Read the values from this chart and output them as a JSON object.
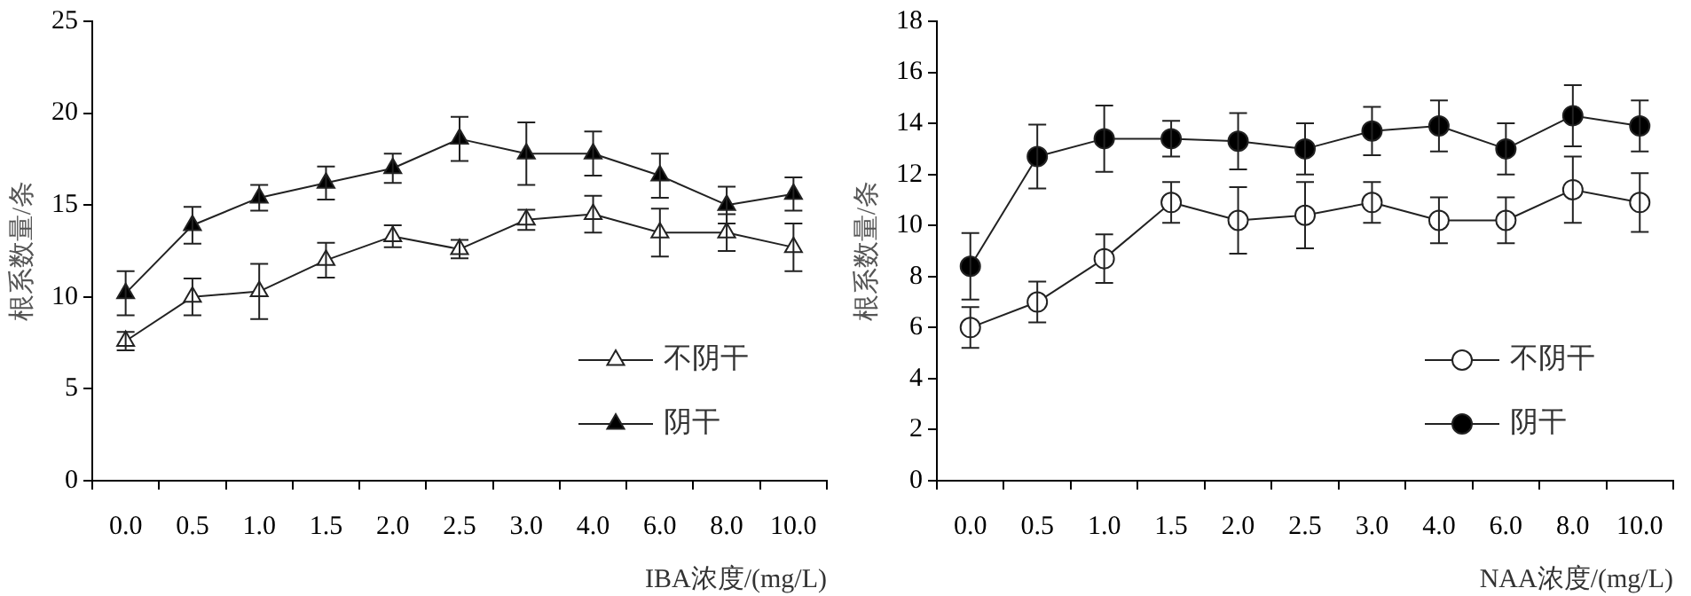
{
  "chart_data": [
    {
      "type": "line",
      "xlabel": "IBA浓度/(mg/L)",
      "ylabel": "根系数量/条",
      "categories": [
        "0.0",
        "0.5",
        "1.0",
        "1.5",
        "2.0",
        "2.5",
        "3.0",
        "4.0",
        "6.0",
        "8.0",
        "10.0"
      ],
      "ylim": [
        0,
        25
      ],
      "yticks": [
        0,
        5,
        10,
        15,
        20,
        25
      ],
      "grid": false,
      "legend": "bottom right",
      "series": [
        {
          "name": "不阴干",
          "color": "#ffffff",
          "marker": "triangle",
          "values": [
            7.6,
            10.0,
            10.3,
            12.0,
            13.3,
            12.6,
            14.2,
            14.5,
            13.5,
            13.5,
            12.7
          ],
          "errors": [
            0.5,
            1.0,
            1.5,
            0.95,
            0.6,
            0.5,
            0.55,
            1.0,
            1.3,
            1.0,
            1.3
          ]
        },
        {
          "name": "阴干",
          "color": "#000000",
          "marker": "triangle",
          "values": [
            10.2,
            13.9,
            15.4,
            16.2,
            17.0,
            18.6,
            17.8,
            17.8,
            16.6,
            15.0,
            15.6
          ],
          "errors": [
            1.2,
            1.0,
            0.7,
            0.9,
            0.8,
            1.2,
            1.7,
            1.2,
            1.2,
            1.0,
            0.9
          ]
        }
      ]
    },
    {
      "type": "line",
      "xlabel": "NAA浓度/(mg/L)",
      "ylabel": "根系数量/条",
      "categories": [
        "0.0",
        "0.5",
        "1.0",
        "1.5",
        "2.0",
        "2.5",
        "3.0",
        "4.0",
        "6.0",
        "8.0",
        "10.0"
      ],
      "ylim": [
        0,
        18
      ],
      "yticks": [
        0,
        2,
        4,
        6,
        8,
        10,
        12,
        14,
        16,
        18
      ],
      "grid": false,
      "legend": "bottom right",
      "series": [
        {
          "name": "不阴干",
          "color": "#ffffff",
          "marker": "circle",
          "values": [
            6.0,
            7.0,
            8.7,
            10.9,
            10.2,
            10.4,
            10.9,
            10.2,
            10.2,
            11.4,
            10.9
          ],
          "errors": [
            0.8,
            0.8,
            0.95,
            0.8,
            1.3,
            1.3,
            0.8,
            0.9,
            0.9,
            1.3,
            1.15
          ]
        },
        {
          "name": "阴干",
          "color": "#000000",
          "marker": "circle",
          "values": [
            8.4,
            12.7,
            13.4,
            13.4,
            13.3,
            13.0,
            13.7,
            13.9,
            13.0,
            14.3,
            13.9
          ],
          "errors": [
            1.3,
            1.25,
            1.3,
            0.7,
            1.1,
            1.0,
            0.95,
            1.0,
            1.0,
            1.2,
            1.0
          ]
        }
      ]
    }
  ]
}
